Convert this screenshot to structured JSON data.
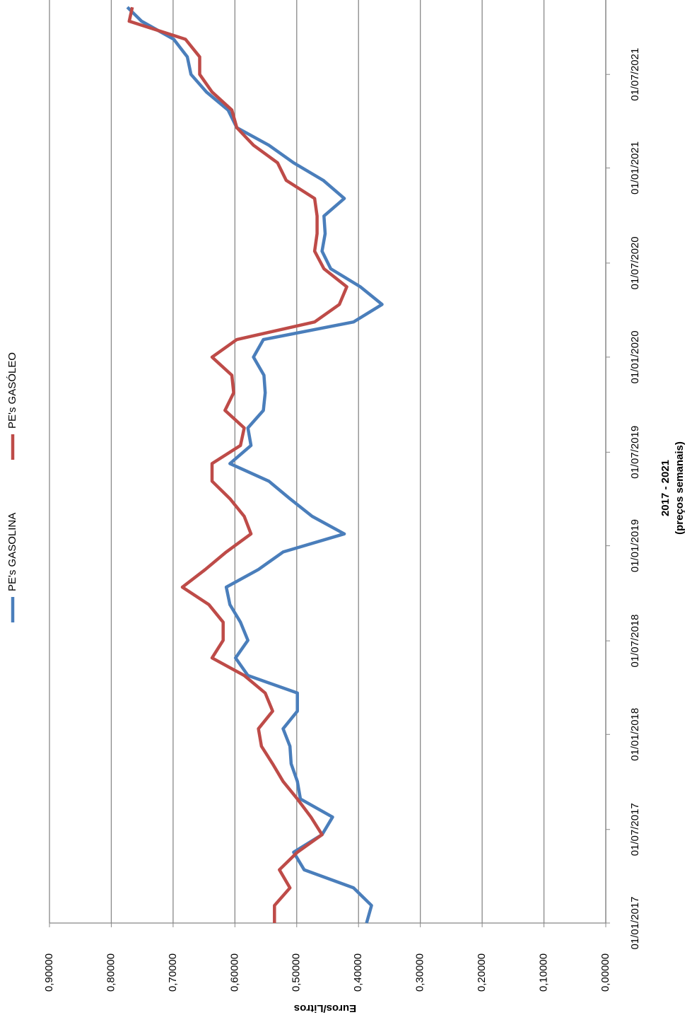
{
  "chart_data": {
    "type": "line",
    "y_label": "Euros/Litros",
    "x_label": "2017 - 2021",
    "x_sublabel": "(preços semanais)",
    "x": [
      "2017-01-01",
      "2017-02-04",
      "2017-03-10",
      "2017-04-14",
      "2017-05-18",
      "2017-06-21",
      "2017-07-25",
      "2017-08-29",
      "2017-10-02",
      "2017-11-05",
      "2017-12-09",
      "2018-01-12",
      "2018-02-15",
      "2018-03-22",
      "2018-04-25",
      "2018-05-29",
      "2018-07-02",
      "2018-08-06",
      "2018-09-09",
      "2018-10-13",
      "2018-11-16",
      "2018-12-20",
      "2019-01-24",
      "2019-02-27",
      "2019-04-02",
      "2019-05-06",
      "2019-06-09",
      "2019-07-14",
      "2019-08-17",
      "2019-09-20",
      "2019-10-24",
      "2019-11-27",
      "2020-01-01",
      "2020-02-04",
      "2020-03-09",
      "2020-04-12",
      "2020-05-16",
      "2020-06-20",
      "2020-07-24",
      "2020-08-27",
      "2020-09-30",
      "2020-11-03",
      "2020-12-08",
      "2021-01-11",
      "2021-02-14",
      "2021-03-20",
      "2021-04-23",
      "2021-05-28",
      "2021-07-01",
      "2021-08-04",
      "2021-09-07",
      "2021-10-12",
      "2021-11-08"
    ],
    "series": [
      {
        "name": "PE's GASOLINA",
        "color": "#4a7ebb",
        "values": [
          0.387,
          0.379,
          0.408,
          0.488,
          0.505,
          0.459,
          0.442,
          0.494,
          0.499,
          0.509,
          0.511,
          0.522,
          0.499,
          0.499,
          0.579,
          0.599,
          0.579,
          0.591,
          0.608,
          0.614,
          0.562,
          0.522,
          0.423,
          0.475,
          0.511,
          0.545,
          0.608,
          0.574,
          0.579,
          0.554,
          0.551,
          0.553,
          0.57,
          0.554,
          0.408,
          0.362,
          0.397,
          0.445,
          0.459,
          0.454,
          0.456,
          0.423,
          0.457,
          0.505,
          0.545,
          0.597,
          0.611,
          0.646,
          0.671,
          0.677,
          0.699,
          0.751,
          0.774
        ]
      },
      {
        "name": "PE's GASÓLEO",
        "color": "#be4b48",
        "values": [
          0.536,
          0.536,
          0.511,
          0.528,
          0.499,
          0.459,
          0.477,
          0.499,
          0.522,
          0.539,
          0.557,
          0.562,
          0.539,
          0.551,
          0.585,
          0.637,
          0.619,
          0.619,
          0.642,
          0.685,
          0.648,
          0.614,
          0.574,
          0.585,
          0.608,
          0.637,
          0.637,
          0.591,
          0.585,
          0.616,
          0.602,
          0.605,
          0.637,
          0.597,
          0.471,
          0.431,
          0.419,
          0.456,
          0.471,
          0.467,
          0.467,
          0.471,
          0.517,
          0.531,
          0.57,
          0.597,
          0.605,
          0.637,
          0.657,
          0.657,
          0.68,
          0.771,
          0.766
        ]
      }
    ],
    "xlim": [
      "2017-01-01",
      "2021-11-22"
    ],
    "xticks": [
      {
        "value": "2017-01-01",
        "label": "01/01/2017"
      },
      {
        "value": "2017-07-01",
        "label": "01/07/2017"
      },
      {
        "value": "2018-01-01",
        "label": "01/01/2018"
      },
      {
        "value": "2018-07-01",
        "label": "01/07/2018"
      },
      {
        "value": "2019-01-01",
        "label": "01/01/2019"
      },
      {
        "value": "2019-07-01",
        "label": "01/07/2019"
      },
      {
        "value": "2020-01-01",
        "label": "01/01/2020"
      },
      {
        "value": "2020-07-01",
        "label": "01/07/2020"
      },
      {
        "value": "2021-01-01",
        "label": "01/01/2021"
      },
      {
        "value": "2021-07-01",
        "label": "01/07/2021"
      }
    ],
    "ylim": [
      0,
      0.9
    ],
    "yticks": [
      {
        "value": 0,
        "label": "0,00000"
      },
      {
        "value": 0.1,
        "label": "0,10000"
      },
      {
        "value": 0.2,
        "label": "0,20000"
      },
      {
        "value": 0.3,
        "label": "0,30000"
      },
      {
        "value": 0.4,
        "label": "0,40000"
      },
      {
        "value": 0.5,
        "label": "0,50000"
      },
      {
        "value": 0.6,
        "label": "0,60000"
      },
      {
        "value": 0.7,
        "label": "0,70000"
      },
      {
        "value": 0.8,
        "label": "0,80000"
      },
      {
        "value": 0.9,
        "label": "0,90000"
      }
    ],
    "grid": true,
    "legend": "top",
    "rotated": true
  }
}
